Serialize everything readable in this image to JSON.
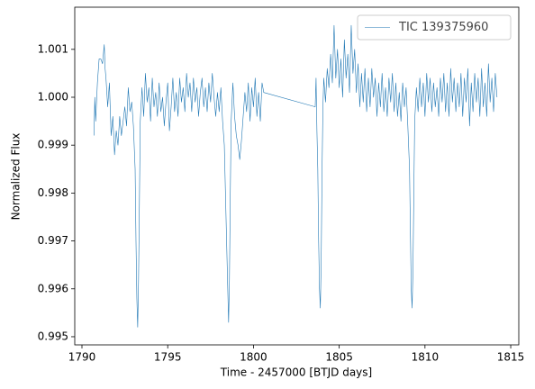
{
  "chart_data": {
    "type": "line",
    "xlabel": "Time - 2457000 [BTJD days]",
    "ylabel": "Normalized Flux",
    "xlim": [
      1789.58,
      1815.47
    ],
    "ylim": [
      0.99483,
      1.00188
    ],
    "xticks": [
      1790,
      1795,
      1800,
      1805,
      1810,
      1815
    ],
    "yticks": [
      0.995,
      0.996,
      0.997,
      0.998,
      0.999,
      {
        "value": 1,
        "label": "1.000"
      },
      1.001
    ],
    "legend": "upper right",
    "x": [
      1790.7,
      1790.75,
      1790.8,
      1790.9,
      1791.0,
      1791.1,
      1791.2,
      1791.3,
      1791.35,
      1791.4,
      1791.5,
      1791.6,
      1791.7,
      1791.8,
      1791.9,
      1792.0,
      1792.1,
      1792.2,
      1792.3,
      1792.4,
      1792.5,
      1792.6,
      1792.7,
      1792.8,
      1792.9,
      1793.0,
      1793.1,
      1793.15,
      1793.2,
      1793.25,
      1793.3,
      1793.35,
      1793.4,
      1793.5,
      1793.6,
      1793.7,
      1793.8,
      1793.9,
      1794.0,
      1794.1,
      1794.2,
      1794.3,
      1794.4,
      1794.5,
      1794.6,
      1794.7,
      1794.8,
      1794.9,
      1795.0,
      1795.1,
      1795.2,
      1795.3,
      1795.4,
      1795.5,
      1795.6,
      1795.7,
      1795.8,
      1795.9,
      1796.0,
      1796.1,
      1796.2,
      1796.3,
      1796.4,
      1796.5,
      1796.6,
      1796.7,
      1796.8,
      1796.9,
      1797.0,
      1797.1,
      1797.2,
      1797.3,
      1797.4,
      1797.5,
      1797.6,
      1797.7,
      1797.8,
      1797.9,
      1798.0,
      1798.1,
      1798.2,
      1798.3,
      1798.4,
      1798.5,
      1798.55,
      1798.6,
      1798.65,
      1798.7,
      1798.8,
      1798.9,
      1799.0,
      1799.1,
      1799.2,
      1799.3,
      1799.4,
      1799.5,
      1799.6,
      1799.7,
      1799.8,
      1799.9,
      1800.0,
      1800.1,
      1800.2,
      1800.3,
      1800.4,
      1800.5,
      1800.6,
      1803.6,
      1803.65,
      1803.7,
      1803.75,
      1803.8,
      1803.85,
      1803.9,
      1803.95,
      1804.0,
      1804.05,
      1804.1,
      1804.2,
      1804.3,
      1804.4,
      1804.5,
      1804.6,
      1804.7,
      1804.8,
      1804.9,
      1805.0,
      1805.1,
      1805.2,
      1805.3,
      1805.4,
      1805.5,
      1805.6,
      1805.7,
      1805.8,
      1805.9,
      1806.0,
      1806.1,
      1806.2,
      1806.3,
      1806.4,
      1806.5,
      1806.6,
      1806.7,
      1806.8,
      1806.9,
      1807.0,
      1807.1,
      1807.2,
      1807.3,
      1807.4,
      1807.5,
      1807.6,
      1807.7,
      1807.8,
      1807.9,
      1808.0,
      1808.1,
      1808.2,
      1808.3,
      1808.4,
      1808.5,
      1808.6,
      1808.7,
      1808.8,
      1808.9,
      1809.0,
      1809.1,
      1809.15,
      1809.2,
      1809.25,
      1809.3,
      1809.35,
      1809.4,
      1809.5,
      1809.6,
      1809.7,
      1809.8,
      1809.9,
      1810.0,
      1810.1,
      1810.2,
      1810.3,
      1810.4,
      1810.5,
      1810.6,
      1810.7,
      1810.8,
      1810.9,
      1811.0,
      1811.1,
      1811.2,
      1811.3,
      1811.4,
      1811.5,
      1811.6,
      1811.7,
      1811.8,
      1811.9,
      1812.0,
      1812.1,
      1812.2,
      1812.3,
      1812.4,
      1812.5,
      1812.6,
      1812.7,
      1812.8,
      1812.9,
      1813.0,
      1813.1,
      1813.2,
      1813.3,
      1813.4,
      1813.5,
      1813.6,
      1813.7,
      1813.8,
      1813.9,
      1814.0,
      1814.1,
      1814.2
    ],
    "series": [
      {
        "name": "TIC 139375960",
        "color": "#1f77b4",
        "values": [
          0.9992,
          1.0,
          0.9995,
          1.0003,
          1.0008,
          1.0008,
          1.0007,
          1.0011,
          1.0006,
          1.0004,
          0.9998,
          1.0003,
          0.9992,
          0.9996,
          0.9988,
          0.9993,
          0.999,
          0.9996,
          0.9992,
          0.9995,
          0.9998,
          0.9994,
          1.0002,
          0.9997,
          0.9999,
          0.9994,
          0.9985,
          0.997,
          0.9958,
          0.9952,
          0.9962,
          0.9978,
          0.9995,
          1.0002,
          0.9996,
          1.0005,
          0.9999,
          1.0002,
          0.9995,
          1.0004,
          0.9998,
          1.0001,
          0.9996,
          1.0003,
          0.9997,
          1.0,
          0.9994,
          0.9999,
          1.0003,
          0.9993,
          0.9998,
          1.0004,
          0.9997,
          1.0001,
          0.9996,
          1.0004,
          0.9999,
          1.0002,
          0.9997,
          1.0005,
          1.0,
          1.0003,
          0.9997,
          1.0004,
          0.9999,
          1.0002,
          0.9996,
          1.0001,
          1.0004,
          0.9998,
          1.0002,
          0.9997,
          1.0003,
          0.9999,
          1.0005,
          1.0,
          0.9996,
          1.0001,
          0.9997,
          1.0002,
          0.9995,
          0.999,
          0.9975,
          0.996,
          0.9953,
          0.9962,
          0.998,
          0.9995,
          1.0003,
          0.9996,
          0.9992,
          0.999,
          0.9987,
          0.9991,
          0.9996,
          1.0001,
          0.9997,
          1.0003,
          0.9995,
          1.0002,
          0.9998,
          1.0004,
          0.9996,
          1.0001,
          0.9995,
          1.0003,
          1.0001,
          0.9998,
          1.0004,
          0.9993,
          0.9985,
          0.997,
          0.996,
          0.9956,
          0.9966,
          0.9985,
          0.9998,
          1.0004,
          0.9999,
          1.0006,
          1.0002,
          1.0009,
          1.0003,
          1.0015,
          1.0004,
          1.001,
          1.0002,
          1.0008,
          1.0,
          1.0012,
          1.0004,
          1.0009,
          1.0001,
          1.0015,
          1.0005,
          1.001,
          1.0001,
          1.0007,
          0.9998,
          1.0005,
          0.9999,
          1.0006,
          0.9997,
          1.0004,
          0.9998,
          1.0006,
          1.0,
          1.0004,
          0.9996,
          1.0003,
          0.9998,
          1.0005,
          0.9997,
          1.0002,
          0.9996,
          1.0004,
          0.9999,
          1.0005,
          0.9997,
          1.0003,
          0.9996,
          1.0001,
          0.9995,
          1.0003,
          0.9998,
          1.0002,
          0.9994,
          0.9985,
          0.9972,
          0.996,
          0.9956,
          0.9964,
          0.998,
          0.9995,
          1.0002,
          0.9997,
          1.0004,
          0.9998,
          1.0003,
          0.9996,
          1.0005,
          0.9999,
          1.0004,
          0.9997,
          1.0003,
          0.9998,
          1.0002,
          0.9996,
          1.0004,
          0.9999,
          1.0005,
          0.9997,
          1.0003,
          0.9996,
          1.0006,
          0.9999,
          1.0004,
          0.9997,
          1.0003,
          0.9998,
          1.0005,
          0.9996,
          1.0004,
          0.9999,
          1.0006,
          0.9994,
          1.0003,
          0.9997,
          1.0005,
          0.9999,
          1.0004,
          0.9996,
          1.0006,
          0.9998,
          1.0003,
          0.9996,
          1.0007,
          0.9999,
          1.0004,
          0.9997,
          1.0005,
          1.0
        ]
      }
    ]
  }
}
